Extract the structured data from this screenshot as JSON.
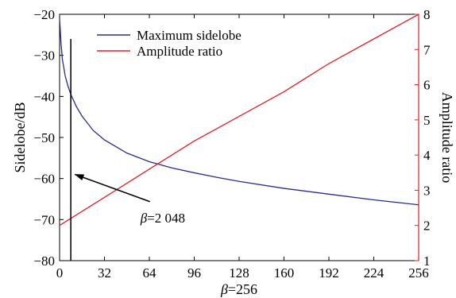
{
  "chart_data": {
    "type": "line",
    "xlabel_prefix": "β",
    "xlabel_suffix": "=256",
    "ylabel_left": "Sidelobe/dB",
    "ylabel_right": "Amplitude ratio",
    "xlim": [
      0,
      256
    ],
    "ylim_left": [
      -80,
      -20
    ],
    "ylim_right": [
      1,
      8
    ],
    "xticks": [
      0,
      32,
      64,
      96,
      128,
      160,
      192,
      224,
      256
    ],
    "yticks_left": [
      -20,
      -30,
      -40,
      -50,
      -60,
      -70,
      -80
    ],
    "yticks_right": [
      8,
      7,
      6,
      5,
      4,
      3,
      2,
      1
    ],
    "legend_position": "top-center",
    "series": [
      {
        "name": "Maximum sidelobe",
        "color": "#2b2b8f",
        "axis": "left",
        "x": [
          0,
          1,
          2,
          4,
          6,
          8,
          12,
          16,
          24,
          32,
          48,
          64,
          80,
          96,
          112,
          128,
          160,
          192,
          224,
          256
        ],
        "y": [
          -21,
          -27,
          -31,
          -35,
          -37.5,
          -39.5,
          -42.5,
          -44.8,
          -48.3,
          -50.6,
          -53.8,
          -55.9,
          -57.4,
          -58.6,
          -59.7,
          -60.7,
          -62.4,
          -63.8,
          -65.2,
          -66.4
        ]
      },
      {
        "name": "Amplitude ratio",
        "color": "#e0202a",
        "axis": "right",
        "x": [
          0,
          32,
          64,
          96,
          128,
          160,
          192,
          224,
          256
        ],
        "y": [
          2.0,
          2.8,
          3.6,
          4.4,
          5.1,
          5.8,
          6.6,
          7.3,
          8.0
        ]
      }
    ],
    "marker_line": {
      "x": 8,
      "y_from": -80,
      "y_to": -26,
      "color": "#000000"
    },
    "annotation": {
      "prefix": "β",
      "suffix": "=2 048",
      "arrow_target": {
        "x": 11,
        "y": -59
      },
      "text_anchor": {
        "x": 61,
        "y": -69.5
      }
    }
  }
}
